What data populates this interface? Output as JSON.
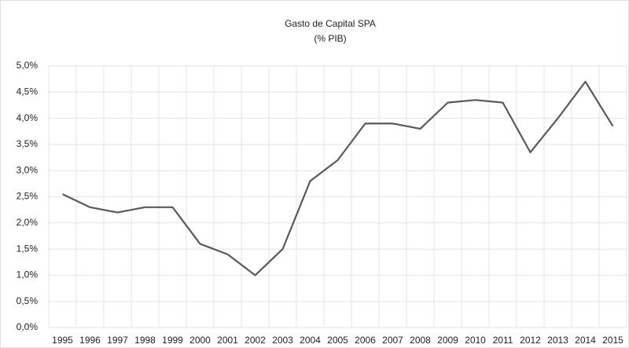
{
  "chart_data": {
    "type": "line",
    "title": "Gasto de Capital SPA",
    "subtitle": "(% PIB)",
    "categories": [
      "1995",
      "1996",
      "1997",
      "1998",
      "1999",
      "2000",
      "2001",
      "2002",
      "2003",
      "2004",
      "2005",
      "2006",
      "2007",
      "2008",
      "2009",
      "2010",
      "2011",
      "2012",
      "2013",
      "2014",
      "2015"
    ],
    "series": [
      {
        "color": "#595959",
        "values": [
          2.55,
          2.3,
          2.2,
          2.3,
          2.3,
          1.6,
          1.4,
          1.0,
          1.5,
          2.8,
          3.2,
          3.9,
          3.9,
          3.8,
          4.3,
          4.35,
          4.3,
          3.35,
          4.0,
          4.7,
          3.85
        ]
      }
    ],
    "ylim": [
      0,
      5
    ],
    "yticks": [
      {
        "value": 0,
        "label": "0,0%"
      },
      {
        "value": 0.5,
        "label": "0,5%"
      },
      {
        "value": 1,
        "label": "1,0%"
      },
      {
        "value": 1.5,
        "label": "1,5%"
      },
      {
        "value": 2,
        "label": "2,0%"
      },
      {
        "value": 2.5,
        "label": "2,5%"
      },
      {
        "value": 3,
        "label": "3,0%"
      },
      {
        "value": 3.5,
        "label": "3,5%"
      },
      {
        "value": 4,
        "label": "4,0%"
      },
      {
        "value": 4.5,
        "label": "4,5%"
      },
      {
        "value": 5,
        "label": "5,0%"
      }
    ],
    "grid": true
  }
}
